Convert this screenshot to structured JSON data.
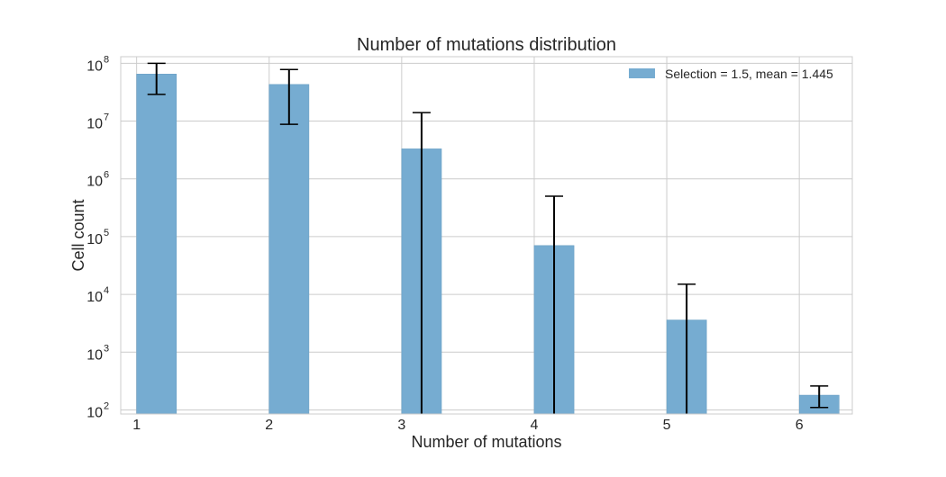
{
  "chart_data": {
    "type": "bar",
    "title": "Number of mutations distribution",
    "xlabel": "Number of mutations",
    "ylabel": "Cell count",
    "yscale": "log",
    "ylim": [
      85,
      130000000
    ],
    "xlim": [
      0.88,
      6.4
    ],
    "xticks": [
      1,
      2,
      3,
      4,
      5,
      6
    ],
    "yticks": [
      {
        "base": "10",
        "exp": "2",
        "value": 100
      },
      {
        "base": "10",
        "exp": "3",
        "value": 1000
      },
      {
        "base": "10",
        "exp": "4",
        "value": 10000
      },
      {
        "base": "10",
        "exp": "5",
        "value": 100000
      },
      {
        "base": "10",
        "exp": "6",
        "value": 1000000
      },
      {
        "base": "10",
        "exp": "7",
        "value": 10000000
      },
      {
        "base": "10",
        "exp": "8",
        "value": 100000000
      }
    ],
    "grid": true,
    "legend_position": "top-right",
    "bar_color": "#76acd1",
    "error_color": "#000000",
    "series": [
      {
        "name": "Selection = 1.5, mean = 1.445",
        "x": [
          1,
          2,
          3,
          4,
          5,
          6
        ],
        "values": [
          65000000,
          43000000,
          3300000,
          70000,
          3600,
          180
        ],
        "err_low": [
          29000000,
          8800000,
          85,
          85,
          85,
          110
        ],
        "err_high": [
          100000000,
          78000000,
          14000000,
          500000,
          15000,
          260
        ]
      }
    ]
  }
}
